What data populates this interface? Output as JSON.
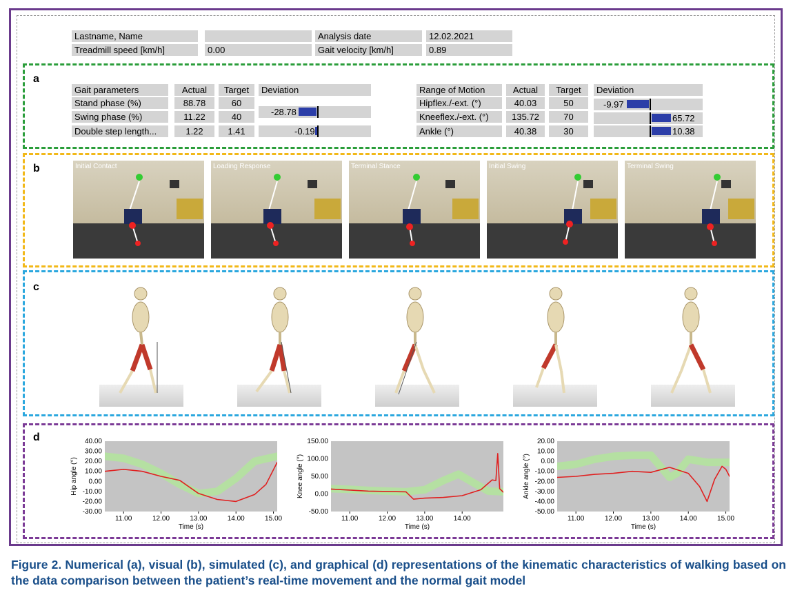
{
  "header": {
    "name_label": "Lastname, Name",
    "name_value": "",
    "analysis_date_label": "Analysis date",
    "analysis_date_value": "12.02.2021",
    "treadmill_label": "Treadmill speed [km/h]",
    "treadmill_value": "0.00",
    "gait_velocity_label": "Gait velocity [km/h]",
    "gait_velocity_value": "0.89"
  },
  "section_letters": {
    "a": "a",
    "b": "b",
    "c": "c",
    "d": "d"
  },
  "gait_table": {
    "headers": [
      "Gait parameters",
      "Actual",
      "Target",
      "Deviation"
    ],
    "rows": [
      {
        "label": "Stand phase (%)",
        "actual": "88.78",
        "target": "60",
        "deviation": ""
      },
      {
        "label": "Swing phase (%)",
        "actual": "11.22",
        "target": "40",
        "deviation": "-28.78"
      },
      {
        "label": "Double step length...",
        "actual": "1.22",
        "target": "1.41",
        "deviation": "-0.19"
      }
    ]
  },
  "rom_table": {
    "headers": [
      "Range of Motion",
      "Actual",
      "Target",
      "Deviation"
    ],
    "rows": [
      {
        "label": "Hipflex./-ext. (°)",
        "actual": "40.03",
        "target": "50",
        "deviation": "-9.97"
      },
      {
        "label": "Kneeflex./-ext. (°)",
        "actual": "135.72",
        "target": "70",
        "deviation": "65.72"
      },
      {
        "label": "Ankle (°)",
        "actual": "40.38",
        "target": "30",
        "deviation": "10.38"
      }
    ]
  },
  "phases": [
    "Initial Contact",
    "Loading Response",
    "Terminal Stance",
    "Initial Swing",
    "Terminal Swing"
  ],
  "chart_data": [
    {
      "type": "line",
      "ylabel": "Hip angle (°)",
      "xlabel": "Time (s)",
      "ylim": [
        -30,
        40
      ],
      "xlim": [
        10.5,
        15.1
      ],
      "y_ticks": [
        "40.00",
        "30.00",
        "20.00",
        "10.00",
        "0.00",
        "-10.00",
        "-20.00",
        "-30.00"
      ],
      "x_ticks": [
        "11.00",
        "12.00",
        "13.00",
        "14.00",
        "15.00"
      ],
      "series": [
        {
          "role": "norm",
          "x": [
            10.5,
            11.0,
            11.5,
            12.0,
            12.5,
            13.0,
            13.5,
            14.0,
            14.5,
            15.1
          ],
          "y": [
            25,
            23,
            17,
            8,
            -3,
            -12,
            -10,
            3,
            20,
            25
          ]
        },
        {
          "role": "patient",
          "x": [
            10.5,
            11.0,
            11.5,
            12.0,
            12.5,
            13.0,
            13.5,
            14.0,
            14.5,
            14.8,
            15.1
          ],
          "y": [
            10,
            12,
            10,
            5,
            1,
            -12,
            -18,
            -20,
            -13,
            -3,
            19
          ]
        }
      ]
    },
    {
      "type": "line",
      "ylabel": "Knee angle (°)",
      "xlabel": "Time (s)",
      "ylim": [
        -50,
        150
      ],
      "xlim": [
        10.5,
        15.1
      ],
      "y_ticks": [
        "150.00",
        "100.00",
        "50.00",
        "0.00",
        "-50.00"
      ],
      "x_ticks": [
        "11.00",
        "12.00",
        "13.00",
        "14.00"
      ],
      "series": [
        {
          "role": "norm",
          "x": [
            10.5,
            11.0,
            11.5,
            12.0,
            12.5,
            13.0,
            13.5,
            13.9,
            14.3,
            14.7,
            15.1
          ],
          "y": [
            15,
            13,
            10,
            8,
            6,
            12,
            38,
            56,
            32,
            8,
            6
          ]
        },
        {
          "role": "patient",
          "x": [
            10.5,
            11.0,
            11.5,
            12.0,
            12.5,
            12.7,
            13.0,
            13.5,
            14.0,
            14.5,
            14.8,
            14.9,
            14.95,
            15.0,
            15.1
          ],
          "y": [
            14,
            11,
            8,
            7,
            6,
            -15,
            -12,
            -10,
            -5,
            12,
            40,
            38,
            115,
            15,
            5
          ]
        }
      ]
    },
    {
      "type": "line",
      "ylabel": "Ankle angle (°)",
      "xlabel": "Time (s)",
      "ylim": [
        -50,
        20
      ],
      "xlim": [
        10.5,
        15.1
      ],
      "y_ticks": [
        "20.00",
        "10.00",
        "0.00",
        "-10.00",
        "-20.00",
        "-30.00",
        "-40.00",
        "-50.00"
      ],
      "x_ticks": [
        "11.00",
        "12.00",
        "13.00",
        "14.00",
        "15.00"
      ],
      "series": [
        {
          "role": "norm",
          "x": [
            10.5,
            11.0,
            11.5,
            12.0,
            12.5,
            13.0,
            13.5,
            13.7,
            14.0,
            14.5,
            15.1
          ],
          "y": [
            -5,
            -3,
            2,
            5,
            6,
            6,
            -16,
            -12,
            2,
            -1,
            -1
          ]
        },
        {
          "role": "patient",
          "x": [
            10.5,
            11.0,
            11.5,
            12.0,
            12.5,
            13.0,
            13.5,
            14.0,
            14.3,
            14.5,
            14.7,
            14.9,
            15.0,
            15.1
          ],
          "y": [
            -16,
            -15,
            -13,
            -12,
            -10,
            -11,
            -6,
            -12,
            -25,
            -40,
            -18,
            -5,
            -8,
            -15
          ]
        }
      ]
    }
  ],
  "colors": {
    "norm": "#b5e0a2",
    "patient": "#e02020",
    "deviation_bar": "#2c3ea8"
  },
  "caption": "Figure 2. Numerical (a), visual (b), simulated (c), and graphical (d) representations of the kinematic characteristics of walking based on the data comparison between the patient’s real-time movement and the normal gait model"
}
